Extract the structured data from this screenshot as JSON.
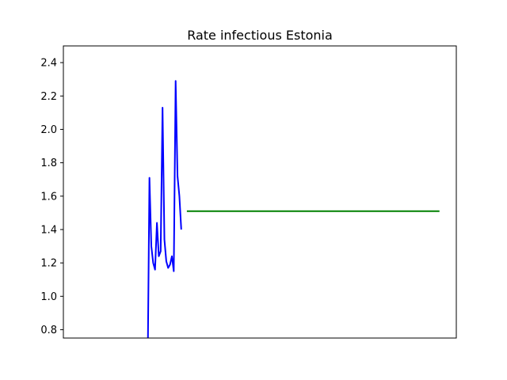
{
  "chart_data": {
    "type": "line",
    "title": "Rate infectious Estonia",
    "xlabel": "",
    "ylabel": "",
    "ylim": [
      0.75,
      2.5
    ],
    "xlim": [
      0,
      105
    ],
    "y_ticks": [
      "0.8",
      "1.0",
      "1.2",
      "1.4",
      "1.6",
      "1.8",
      "2.0",
      "2.2",
      "2.4"
    ],
    "y_tick_values": [
      0.8,
      1.0,
      1.2,
      1.4,
      1.6,
      1.8,
      2.0,
      2.2,
      2.4
    ],
    "grid": false,
    "series": [
      {
        "color": "#0000ff",
        "x": [
          22.6,
          23.0,
          23.5,
          24.0,
          24.5,
          25.0,
          25.5,
          26.0,
          26.5,
          27.0,
          27.5,
          28.0,
          28.5,
          29.0,
          29.5,
          30.0,
          30.5,
          31.0,
          31.5,
          32.0,
          32.5,
          33.0
        ],
        "y": [
          0.75,
          1.71,
          1.3,
          1.2,
          1.16,
          1.44,
          1.24,
          1.27,
          2.13,
          1.34,
          1.21,
          1.17,
          1.19,
          1.24,
          1.15,
          2.29,
          1.72,
          1.6,
          1.4,
          null,
          null,
          null
        ]
      },
      {
        "color": "#008000",
        "x": [
          33.0,
          100.5
        ],
        "y": [
          1.51,
          1.51
        ]
      }
    ]
  }
}
